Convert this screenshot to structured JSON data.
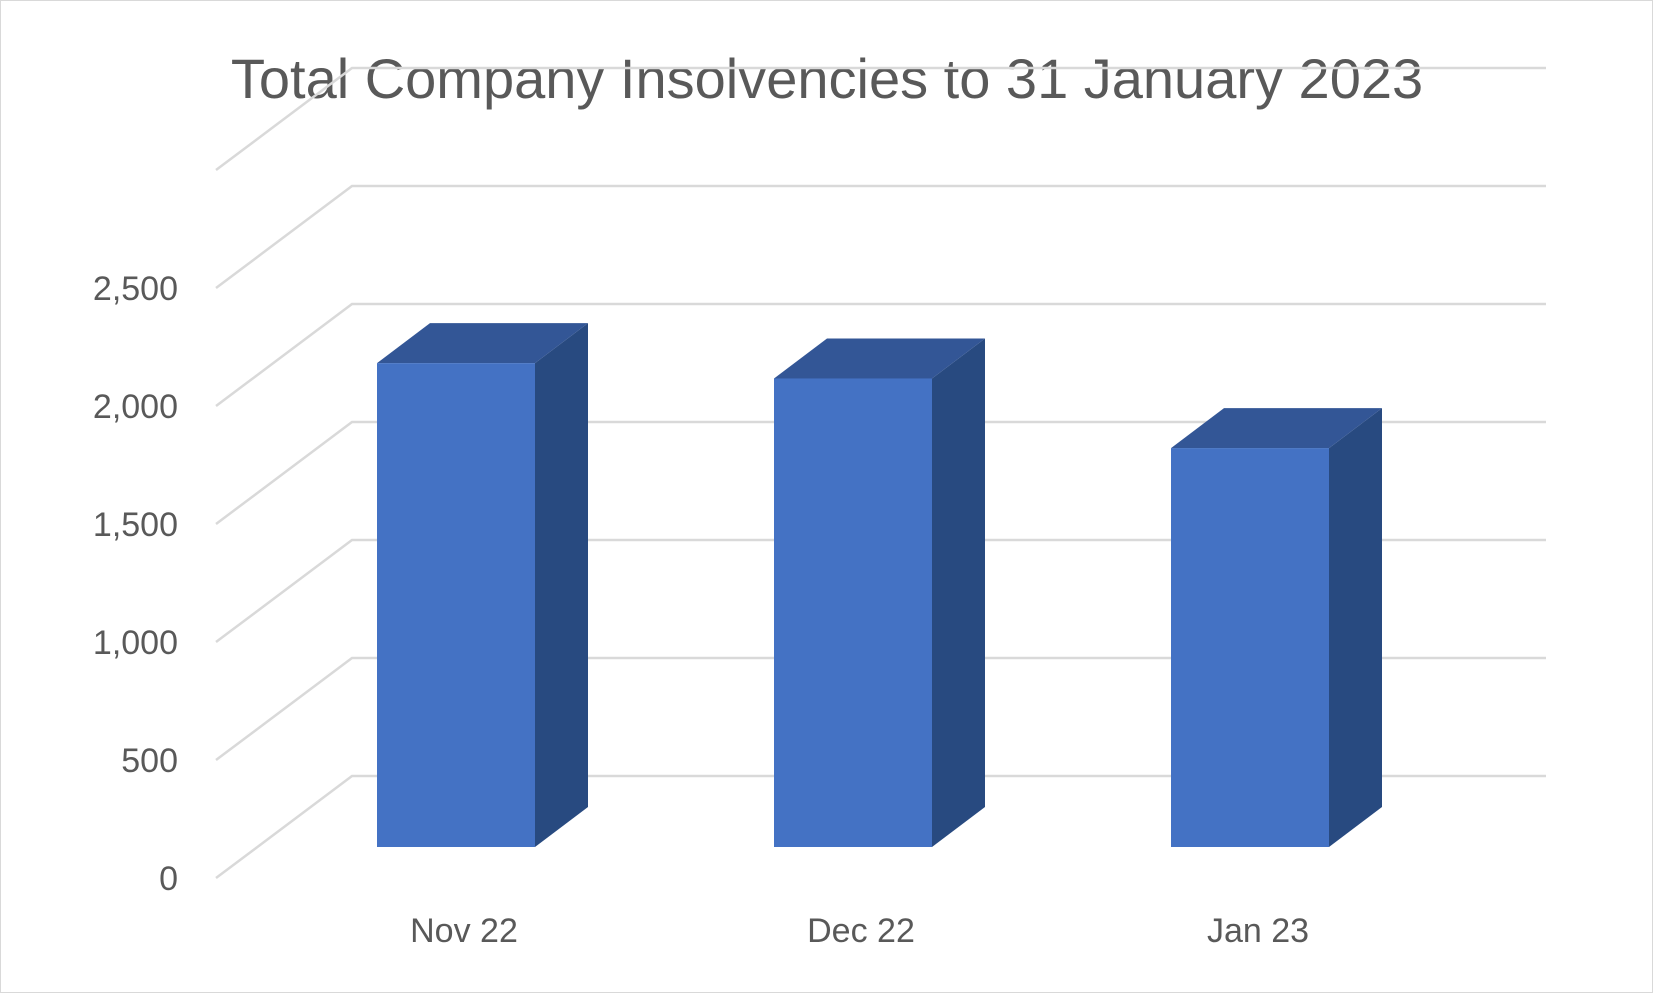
{
  "chart_data": {
    "type": "bar",
    "title": "Total Company Insolvencies to 31 January 2023",
    "categories": [
      "Nov 22",
      "Dec 22",
      "Jan 23"
    ],
    "series": [
      {
        "values": [
          2030,
          1965,
          1670
        ]
      }
    ],
    "yticks": [
      "0",
      "500",
      "1,000",
      "1,500",
      "2,000",
      "2,500"
    ],
    "ylim": [
      0,
      2500
    ],
    "grid": true,
    "legend": "none",
    "style": "3d-column",
    "colors": {
      "front": "#4472c4",
      "side": "#284a80",
      "top": "#335696",
      "grid": "#d9d9d9",
      "text": "#595959"
    }
  }
}
